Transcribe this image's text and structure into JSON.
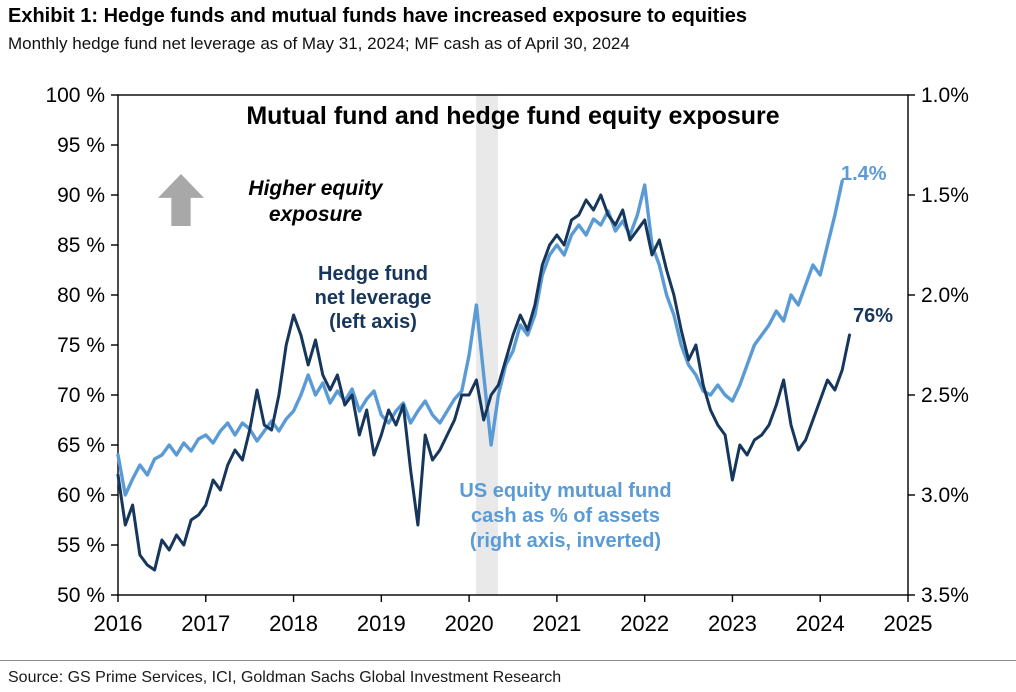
{
  "header": {
    "exhibit_title": "Exhibit 1: Hedge funds and mutual funds have increased exposure to equities",
    "subtitle": "Monthly hedge fund net leverage as of May 31, 2024; MF cash as of April 30, 2024"
  },
  "footer": {
    "source": "Source: GS Prime Services, ICI, Goldman Sachs Global Investment Research"
  },
  "colors": {
    "navy": "#16365C",
    "light_blue": "#5B9BD5",
    "arrow_gray": "#A8A8A8",
    "band_gray": "#E9E9E9",
    "axis_black": "#000000"
  },
  "chart_data": {
    "type": "line",
    "title": "Mutual fund and hedge fund equity exposure",
    "x_axis": {
      "min": 2016,
      "max": 2025,
      "tick_values": [
        2016,
        2017,
        2018,
        2019,
        2020,
        2021,
        2022,
        2023,
        2024,
        2025
      ],
      "tick_labels": [
        "2016",
        "2017",
        "2018",
        "2019",
        "2020",
        "2021",
        "2022",
        "2023",
        "2024",
        "2025"
      ]
    },
    "left_axis": {
      "min": 50,
      "max": 100,
      "tick_values": [
        100,
        95,
        90,
        85,
        80,
        75,
        70,
        65,
        60,
        55,
        50
      ],
      "tick_labels": [
        "100 %",
        "95 %",
        "90 %",
        "85 %",
        "80 %",
        "75 %",
        "70 %",
        "65 %",
        "60 %",
        "55 %",
        "50 %"
      ]
    },
    "right_axis": {
      "inverted": true,
      "top": 1.0,
      "bottom": 3.5,
      "tick_values": [
        1.0,
        1.5,
        2.0,
        2.5,
        3.0,
        3.5
      ],
      "tick_labels": [
        "1.0%",
        "1.5%",
        "2.0%",
        "2.5%",
        "3.0%",
        "3.5%"
      ]
    },
    "recession_band": {
      "start": 2020.08,
      "end": 2020.33
    },
    "grid": false,
    "series": [
      {
        "name": "US equity mutual fund cash as % of assets",
        "axis": "right",
        "color": "#5B9BD5",
        "stroke_width": 3.4,
        "start": 2016.0,
        "step_months": 1,
        "values": [
          2.8,
          3.0,
          2.92,
          2.85,
          2.9,
          2.82,
          2.8,
          2.75,
          2.8,
          2.74,
          2.78,
          2.72,
          2.7,
          2.74,
          2.68,
          2.64,
          2.7,
          2.64,
          2.67,
          2.73,
          2.68,
          2.63,
          2.68,
          2.62,
          2.58,
          2.5,
          2.4,
          2.5,
          2.44,
          2.54,
          2.48,
          2.53,
          2.47,
          2.58,
          2.52,
          2.48,
          2.6,
          2.64,
          2.58,
          2.54,
          2.64,
          2.58,
          2.53,
          2.6,
          2.64,
          2.58,
          2.52,
          2.48,
          2.3,
          2.05,
          2.4,
          2.75,
          2.5,
          2.35,
          2.28,
          2.15,
          2.2,
          2.1,
          1.9,
          1.8,
          1.75,
          1.8,
          1.7,
          1.65,
          1.7,
          1.62,
          1.65,
          1.58,
          1.68,
          1.63,
          1.7,
          1.6,
          1.45,
          1.75,
          1.85,
          2.0,
          2.1,
          2.25,
          2.35,
          2.4,
          2.48,
          2.5,
          2.45,
          2.5,
          2.53,
          2.45,
          2.35,
          2.25,
          2.2,
          2.15,
          2.08,
          2.13,
          2.0,
          2.05,
          1.95,
          1.85,
          1.9,
          1.75,
          1.6,
          1.43
        ]
      },
      {
        "name": "Hedge fund net leverage",
        "axis": "left",
        "color": "#16365C",
        "stroke_width": 3.0,
        "start": 2016.0,
        "step_months": 1,
        "values": [
          62,
          57,
          59,
          54,
          53,
          52.5,
          55.5,
          54.5,
          56,
          55,
          57.5,
          58,
          59,
          61.5,
          60.5,
          63,
          64.5,
          63.5,
          66.5,
          70.5,
          67,
          66.5,
          70,
          75,
          78,
          76,
          73,
          75.5,
          72,
          70.5,
          72,
          69,
          70,
          66,
          68.5,
          64,
          66,
          68.5,
          67,
          69,
          62.5,
          57,
          66,
          63.5,
          64.5,
          66,
          67.5,
          70,
          70,
          71.5,
          67.5,
          70,
          71,
          73.5,
          76,
          78,
          76.5,
          79,
          83,
          85,
          86,
          85,
          87.5,
          88,
          89.5,
          88.5,
          90,
          88,
          87,
          88.5,
          85.5,
          86.5,
          87.5,
          84,
          85.5,
          82.5,
          80,
          76.5,
          73.5,
          75,
          71,
          68.5,
          67,
          66,
          61.5,
          65,
          64,
          65.5,
          66,
          67,
          69,
          71.5,
          67,
          64.5,
          65.5,
          67.5,
          69.5,
          71.5,
          70.5,
          72.5,
          76
        ]
      }
    ],
    "annotations": {
      "higher_equity": "Higher equity\nexposure",
      "hedge_label": "Hedge fund\nnet leverage\n(left axis)",
      "mf_label": "US equity mutual fund\ncash as % of assets\n(right axis, inverted)",
      "end_label_blue": "1.4%",
      "end_label_navy": "76%"
    }
  }
}
